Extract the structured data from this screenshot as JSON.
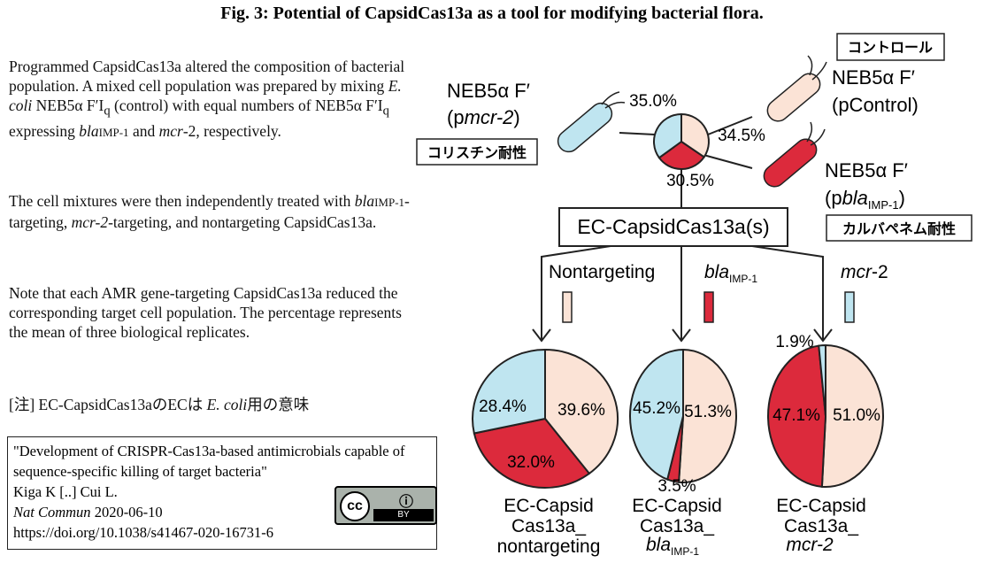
{
  "title": "Fig. 3: Potential of CapsidCas13a as a tool for modifying bacterial flora.",
  "paragraphs": [
    [
      "Programmed CapsidCas13a altered the composition of bacterial population. A mixed cell population was prepared by mixing ",
      "E. coli",
      " NEB5α F′I",
      "q",
      " (control) with equal numbers of NEB5α F′I",
      "q",
      " expressing ",
      "bla",
      "IMP-1",
      " and ",
      "mcr",
      "-2, respectively."
    ],
    [
      "The cell mixtures were then independently treated with ",
      "bla",
      "IMP-1",
      "-targeting, ",
      "mcr-2",
      "-targeting, and nontargeting CapsidCas13a."
    ],
    [
      "Note that each AMR gene-targeting CapsidCas13a reduced the corresponding target cell population. The percentage represents the mean of three biological replicates."
    ]
  ],
  "note": [
    "[注] EC-CapsidCas13aのECは ",
    "E. coli",
    "用の意味"
  ],
  "citation": {
    "title": "\"Development of CRISPR-Cas13a-based antimicrobials capable of sequence-specific killing of target bacteria\"",
    "authors": "Kiga K [..] Cui L.",
    "journal": "Nat Commun",
    "date": " 2020-06-10",
    "doi": "https://doi.org/10.1038/s41467-020-16731-6",
    "license": [
      "cc",
      "BY"
    ]
  },
  "strains": [
    {
      "name": "NEB5α F′",
      "plasmid": [
        "(p",
        "mcr-2",
        ")"
      ]
    },
    {
      "name": "NEB5α F′",
      "plasmid": [
        "(pControl)"
      ]
    },
    {
      "name": "NEB5α F′",
      "plasmid": [
        "(p",
        "bla",
        "IMP-1",
        ")"
      ]
    }
  ],
  "tags": [
    "コントロール",
    "コリスチン耐性",
    "カルバペネム耐性"
  ],
  "treatment": "EC-CapsidCas13a(s)",
  "branches": [
    [
      "Nontargeting"
    ],
    [
      "bla",
      "IMP-1"
    ],
    [
      "mcr",
      "-2"
    ]
  ],
  "chart_data": [
    {
      "type": "pie",
      "values": [
        34.5,
        30.5,
        35.0
      ],
      "value_labels": [
        "34.5%",
        "30.5%",
        "35.0%"
      ],
      "colors": [
        "#fbe3d6",
        "#dc2a3c",
        "#bfe5f0"
      ]
    },
    {
      "type": "pie",
      "values": [
        39.6,
        32.0,
        28.4
      ],
      "value_labels": [
        "39.6%",
        "32.0%",
        "28.4%"
      ],
      "colors": [
        "#fbe3d6",
        "#dc2a3c",
        "#bfe5f0"
      ],
      "caption": [
        "EC-Capsid",
        "Cas13a_",
        "nontargeting"
      ]
    },
    {
      "type": "pie",
      "values": [
        51.3,
        3.5,
        45.2
      ],
      "value_labels": [
        "51.3%",
        "3.5%",
        "45.2%"
      ],
      "colors": [
        "#fbe3d6",
        "#dc2a3c",
        "#bfe5f0"
      ],
      "caption": [
        "EC-Capsid",
        "Cas13a_",
        "bla",
        "IMP-1"
      ]
    },
    {
      "type": "pie",
      "values": [
        51.0,
        47.1,
        1.9
      ],
      "value_labels": [
        "51.0%",
        "47.1%",
        "1.9%"
      ],
      "colors": [
        "#fbe3d6",
        "#dc2a3c",
        "#bfe5f0"
      ],
      "caption": [
        "EC-Capsid",
        "Cas13a_",
        "mcr-2"
      ]
    }
  ]
}
